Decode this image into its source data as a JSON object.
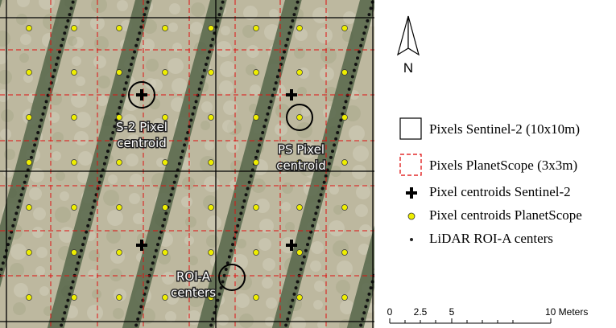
{
  "north_label": "N",
  "annotations": [
    {
      "lines": [
        "S-2 Pixel",
        "centroid"
      ]
    },
    {
      "lines": [
        "PS Pixel",
        "centroid"
      ]
    },
    {
      "lines": [
        "ROI-A",
        "centers"
      ]
    }
  ],
  "legend": [
    "Pixels Sentinel-2 (10x10m)",
    "Pixels PlanetScope (3x3m)",
    "Pixel centroids Sentinel-2",
    "Pixel centroids PlanetScope",
    "LiDAR ROI-A centers"
  ],
  "scale_bar": [
    "0",
    "2.5",
    "5",
    "10 Meters"
  ]
}
